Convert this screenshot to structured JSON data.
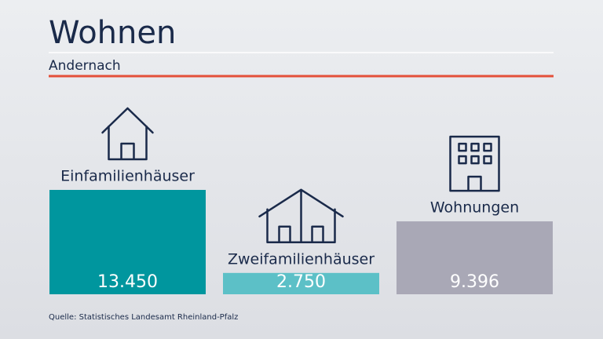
{
  "chart_data": {
    "type": "bar",
    "title": "Wohnen",
    "subtitle": "Andernach",
    "categories": [
      "Einfamilienhäuser",
      "Zweifamilienhäuser",
      "Wohnungen"
    ],
    "values": [
      13450,
      2750,
      9396
    ],
    "value_labels": [
      "13.450",
      "2.750",
      "9.396"
    ],
    "colors": [
      "#00969e",
      "#5cc0c7",
      "#a9a8b6"
    ],
    "source": "Quelle: Statistisches Landesamt Rheinland-Pfalz"
  }
}
